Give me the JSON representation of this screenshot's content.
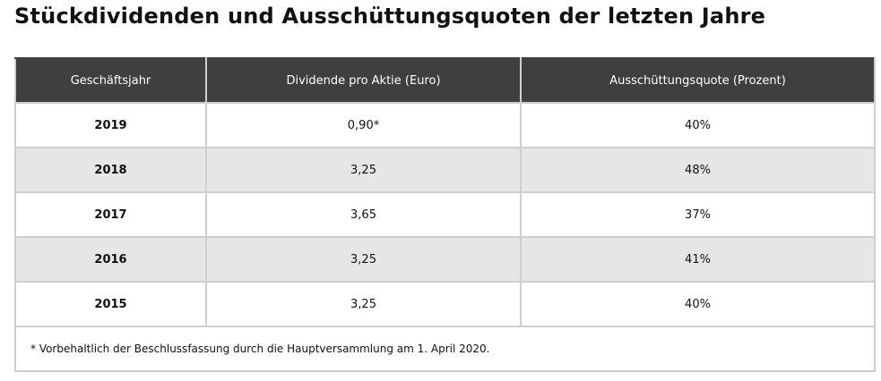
{
  "header": {
    "title": "Stückdividenden und Ausschüttungsquoten der letzten Jahre"
  },
  "table": {
    "columns": [
      "Geschäftsjahr",
      "Dividende pro Aktie (Euro)",
      "Ausschüttungsquote (Prozent)"
    ],
    "rows": [
      [
        "2019",
        "0,90*",
        "40%"
      ],
      [
        "2018",
        "3,25",
        "48%"
      ],
      [
        "2017",
        "3,65",
        "37%"
      ],
      [
        "2016",
        "3,25",
        "41%"
      ],
      [
        "2015",
        "3,25",
        "40%"
      ]
    ],
    "footnote": "* Vorbehaltlich der Beschlussfassung durch die Hauptversammlung am 1. April 2020."
  }
}
